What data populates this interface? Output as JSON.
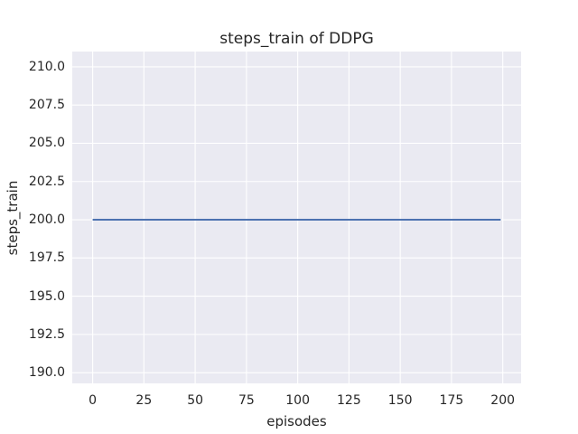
{
  "chart_data": {
    "type": "line",
    "title": "steps_train of DDPG",
    "xlabel": "episodes",
    "ylabel": "steps_train",
    "xlim": [
      -9.95,
      208.95
    ],
    "ylim": [
      189.3,
      211.0
    ],
    "xticks": [
      0,
      25,
      50,
      75,
      100,
      125,
      150,
      175,
      200
    ],
    "xtick_labels": [
      "0",
      "25",
      "50",
      "75",
      "100",
      "125",
      "150",
      "175",
      "200"
    ],
    "yticks": [
      190.0,
      192.5,
      195.0,
      197.5,
      200.0,
      202.5,
      205.0,
      207.5,
      210.0
    ],
    "ytick_labels": [
      "190.0",
      "192.5",
      "195.0",
      "197.5",
      "200.0",
      "202.5",
      "205.0",
      "207.5",
      "210.0"
    ],
    "grid": true,
    "legend": false,
    "series": [
      {
        "name": "steps_train",
        "color": "#4c72b0",
        "constant_value": 200,
        "x": [
          0,
          199
        ],
        "y": [
          200,
          200
        ]
      }
    ],
    "colors": {
      "figure_background": "#ffffff",
      "plot_background": "#eaeaf2",
      "gridline": "#ffffff",
      "text": "#262626",
      "line": "#4c72b0"
    }
  }
}
